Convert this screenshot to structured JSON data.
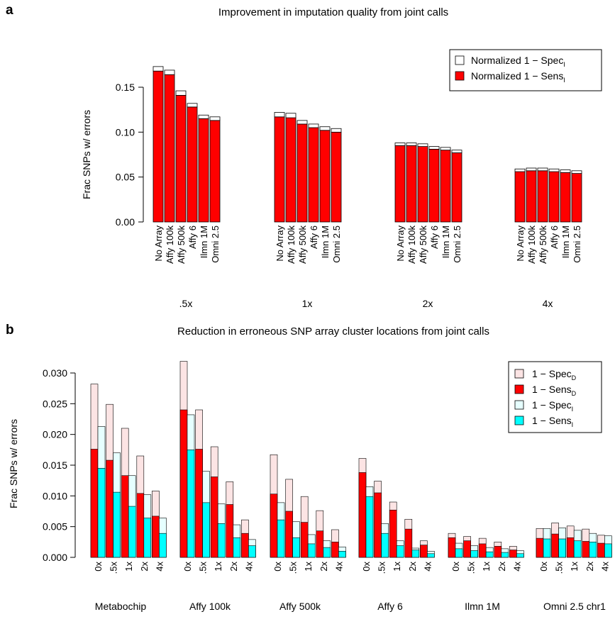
{
  "panels": [
    {
      "letter": "a",
      "title": "Improvement in imputation quality from joint calls"
    },
    {
      "letter": "b",
      "title": "Reduction in erroneous SNP array cluster locations from joint calls"
    }
  ],
  "colors": {
    "red": "#ff0000",
    "white": "#ffffff",
    "pink": "#fce4e4",
    "lightcyan": "#e6ffff",
    "cyan": "#00ffff",
    "axis": "#000000"
  },
  "chart_data": [
    {
      "type": "bar",
      "stacked": true,
      "title": "Improvement in imputation quality from joint calls",
      "ylabel": "Frac SNPs w/ errors",
      "ylim": [
        0,
        0.175
      ],
      "yticks": [
        "0.00",
        "0.05",
        "0.10",
        "0.15"
      ],
      "groups": [
        ".5x",
        "1x",
        "2x",
        "4x"
      ],
      "categories": [
        "No Array",
        "Affy 100k",
        "Affy 500k",
        "Affy 6",
        "Ilmn 1M",
        "Omni 2.5"
      ],
      "legend": {
        "position": "top-right",
        "entries": [
          {
            "text": "Normalized 1 − Spec",
            "sub": "I",
            "color": "#ffffff"
          },
          {
            "text": "Normalized 1 − Sens",
            "sub": "I",
            "color": "#ff0000"
          }
        ]
      },
      "series": [
        {
          "key": "sens",
          "color": "#ff0000",
          "values": [
            [
              0.168,
              0.164,
              0.141,
              0.128,
              0.115,
              0.113
            ],
            [
              0.117,
              0.116,
              0.109,
              0.105,
              0.102,
              0.1
            ],
            [
              0.085,
              0.085,
              0.084,
              0.081,
              0.08,
              0.077
            ],
            [
              0.056,
              0.057,
              0.057,
              0.056,
              0.055,
              0.054
            ]
          ]
        },
        {
          "key": "spec",
          "color": "#ffffff",
          "values": [
            [
              0.005,
              0.005,
              0.005,
              0.004,
              0.004,
              0.004
            ],
            [
              0.005,
              0.005,
              0.004,
              0.004,
              0.004,
              0.004
            ],
            [
              0.003,
              0.003,
              0.003,
              0.003,
              0.003,
              0.003
            ],
            [
              0.003,
              0.003,
              0.003,
              0.003,
              0.003,
              0.003
            ]
          ]
        }
      ]
    },
    {
      "type": "bar",
      "overlaid": true,
      "title": "Reduction in erroneous SNP array cluster locations from joint calls",
      "ylabel": "Frac SNPs w/ errors",
      "ylim": [
        0,
        0.032
      ],
      "yticks": [
        "0.000",
        "0.005",
        "0.010",
        "0.015",
        "0.020",
        "0.025",
        "0.030"
      ],
      "groups": [
        "Metabochip",
        "Affy 100k",
        "Affy 500k",
        "Affy 6",
        "Ilmn 1M",
        "Omni 2.5 chr1"
      ],
      "categories": [
        "0x",
        ".5x",
        "1x",
        "2x",
        "4x"
      ],
      "legend": {
        "position": "top-right",
        "entries": [
          {
            "text": "1 − Spec",
            "sub": "D",
            "color": "#fce4e4"
          },
          {
            "text": "1 − Sens",
            "sub": "D",
            "color": "#ff0000"
          },
          {
            "text": "1 − Spec",
            "sub": "I",
            "color": "#e6ffff"
          },
          {
            "text": "1 − Sens",
            "sub": "I",
            "color": "#00ffff"
          }
        ]
      },
      "series": [
        {
          "key": "specD",
          "color": "#fce4e4",
          "values": [
            [
              0.0282,
              0.0249,
              0.021,
              0.0165,
              0.0108
            ],
            [
              0.0319,
              0.024,
              0.018,
              0.0123,
              0.0061
            ],
            [
              0.0167,
              0.0127,
              0.0099,
              0.0076,
              0.0045
            ],
            [
              0.0161,
              0.0124,
              0.009,
              0.0062,
              0.0027
            ],
            [
              0.0039,
              0.0034,
              0.0031,
              0.0025,
              0.0018
            ],
            [
              0.0047,
              0.0056,
              0.0051,
              0.0046,
              0.0036
            ]
          ]
        },
        {
          "key": "sensD",
          "color": "#ff0000",
          "values": [
            [
              0.0176,
              0.0158,
              0.0133,
              0.0104,
              0.0067
            ],
            [
              0.024,
              0.0176,
              0.0131,
              0.0086,
              0.0039
            ],
            [
              0.0103,
              0.0075,
              0.0057,
              0.0043,
              0.0025
            ],
            [
              0.0138,
              0.0105,
              0.0077,
              0.0046,
              0.002
            ],
            [
              0.0032,
              0.0027,
              0.0022,
              0.0018,
              0.0012
            ],
            [
              0.0031,
              0.0038,
              0.0032,
              0.0026,
              0.0023
            ]
          ]
        },
        {
          "key": "specI",
          "color": "#e6ffff",
          "values": [
            [
              0.0213,
              0.017,
              0.0133,
              0.0102,
              0.0064
            ],
            [
              0.0232,
              0.014,
              0.0087,
              0.0053,
              0.0029
            ],
            [
              0.0089,
              0.0058,
              0.0037,
              0.0027,
              0.0017
            ],
            [
              0.0115,
              0.0055,
              0.0027,
              0.0015,
              0.001
            ],
            [
              0.0023,
              0.0019,
              0.0016,
              0.0014,
              0.0011
            ],
            [
              0.0047,
              0.0048,
              0.0044,
              0.0039,
              0.0035
            ]
          ]
        },
        {
          "key": "sensI",
          "color": "#00ffff",
          "values": [
            [
              0.0145,
              0.0106,
              0.0083,
              0.0064,
              0.0039
            ],
            [
              0.0175,
              0.0089,
              0.0055,
              0.0032,
              0.0019
            ],
            [
              0.0061,
              0.0032,
              0.0022,
              0.0016,
              0.001
            ],
            [
              0.0099,
              0.0039,
              0.0019,
              0.0012,
              0.0006
            ],
            [
              0.0014,
              0.0011,
              0.0009,
              0.0008,
              0.0006
            ],
            [
              0.003,
              0.003,
              0.0027,
              0.0025,
              0.0022
            ]
          ]
        }
      ]
    }
  ]
}
